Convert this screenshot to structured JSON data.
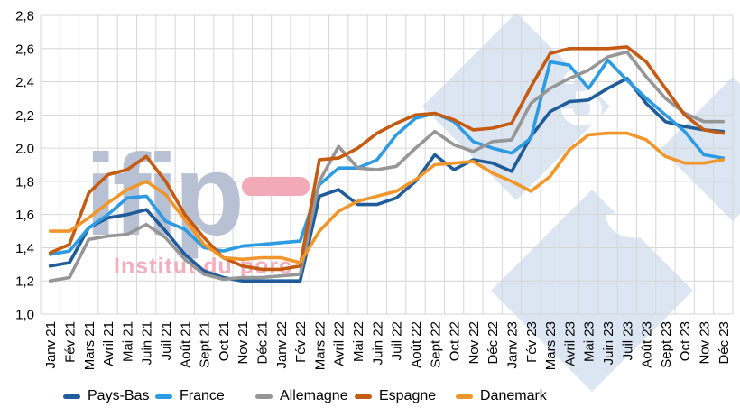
{
  "watermark": {
    "brand": "ifip",
    "tagline": "Institut du porc",
    "digit": "3",
    "brand_color": "#b7c1d3",
    "tagline_color": "#f2aebc",
    "dash_color": "#f3aab8",
    "diamond_color": "#dce6f3"
  },
  "chart_data": {
    "type": "line",
    "title": "",
    "xlabel": "",
    "ylabel": "",
    "grid": true,
    "legend_position": "bottom",
    "x_labels": [
      "Janv 21",
      "Fév 21",
      "Mars 21",
      "Avril 21",
      "Mai 21",
      "Juin 21",
      "Juil 21",
      "Août 21",
      "Sept 21",
      "Oct 21",
      "Nov 21",
      "Déc 21",
      "Janv 22",
      "Fév 22",
      "Mars 22",
      "Avril 22",
      "Mai 22",
      "Juin 22",
      "Juil 22",
      "Août 22",
      "Sept 22",
      "Oct 22",
      "Nov 22",
      "Déc 22",
      "Janv 23",
      "Fév 23",
      "Mars 23",
      "Avril 23",
      "Mai 23",
      "Juin 23",
      "Juil 23",
      "Août 23",
      "Sept 23",
      "Oct 23",
      "Nov 23",
      "Déc 23"
    ],
    "y_axis": {
      "min": 1.0,
      "max": 2.8,
      "ticks": [
        {
          "value": 2.8,
          "label": "2,8"
        },
        {
          "value": 2.6,
          "label": "2,6"
        },
        {
          "value": 2.4,
          "label": "2,4"
        },
        {
          "value": 2.2,
          "label": "2,2"
        },
        {
          "value": 2.0,
          "label": "2.0"
        },
        {
          "value": 1.8,
          "label": "1,8"
        },
        {
          "value": 1.6,
          "label": "1,6"
        },
        {
          "value": 1.4,
          "label": "1,4"
        },
        {
          "value": 1.2,
          "label": "1,2"
        },
        {
          "value": 1.0,
          "label": "1,0"
        }
      ]
    },
    "series": [
      {
        "name": "Pays-Bas",
        "color": "#1f5c99",
        "values": [
          1.29,
          1.31,
          1.52,
          1.58,
          1.6,
          1.63,
          1.5,
          1.36,
          1.26,
          1.22,
          1.2,
          1.2,
          1.2,
          1.2,
          1.71,
          1.75,
          1.66,
          1.66,
          1.7,
          1.8,
          1.96,
          1.87,
          1.93,
          1.91,
          1.86,
          2.07,
          2.22,
          2.28,
          2.29,
          2.36,
          2.42,
          2.27,
          2.16,
          2.13,
          2.11,
          2.1
        ]
      },
      {
        "name": "France",
        "color": "#2d9be2",
        "values": [
          1.36,
          1.38,
          1.52,
          1.6,
          1.7,
          1.71,
          1.56,
          1.51,
          1.4,
          1.38,
          1.41,
          1.42,
          1.43,
          1.44,
          1.78,
          1.88,
          1.88,
          1.93,
          2.08,
          2.18,
          2.21,
          2.16,
          2.04,
          2.0,
          1.97,
          2.06,
          2.52,
          2.5,
          2.36,
          2.53,
          2.41,
          2.3,
          2.2,
          2.1,
          1.96,
          1.94
        ]
      },
      {
        "name": "Allemagne",
        "color": "#969696",
        "values": [
          1.2,
          1.22,
          1.45,
          1.47,
          1.48,
          1.54,
          1.46,
          1.33,
          1.24,
          1.21,
          1.22,
          1.22,
          1.23,
          1.24,
          1.8,
          2.01,
          1.88,
          1.87,
          1.89,
          2.0,
          2.1,
          2.02,
          1.98,
          2.04,
          2.05,
          2.27,
          2.36,
          2.42,
          2.47,
          2.55,
          2.58,
          2.43,
          2.3,
          2.21,
          2.16,
          2.16
        ]
      },
      {
        "name": "Espagne",
        "color": "#c55a11",
        "values": [
          1.37,
          1.42,
          1.73,
          1.84,
          1.87,
          1.95,
          1.8,
          1.6,
          1.46,
          1.34,
          1.29,
          1.27,
          1.27,
          1.29,
          1.93,
          1.94,
          2.0,
          2.09,
          2.15,
          2.2,
          2.21,
          2.17,
          2.11,
          2.12,
          2.15,
          2.37,
          2.57,
          2.6,
          2.6,
          2.6,
          2.61,
          2.52,
          2.36,
          2.2,
          2.11,
          2.09
        ]
      },
      {
        "name": "Danemark",
        "color": "#f0962b",
        "values": [
          1.5,
          1.5,
          1.58,
          1.67,
          1.75,
          1.8,
          1.72,
          1.57,
          1.42,
          1.34,
          1.33,
          1.34,
          1.34,
          1.31,
          1.5,
          1.62,
          1.68,
          1.71,
          1.74,
          1.81,
          1.9,
          1.91,
          1.92,
          1.85,
          1.8,
          1.74,
          1.83,
          1.99,
          2.08,
          2.09,
          2.09,
          2.05,
          1.95,
          1.91,
          1.91,
          1.93
        ]
      }
    ]
  }
}
